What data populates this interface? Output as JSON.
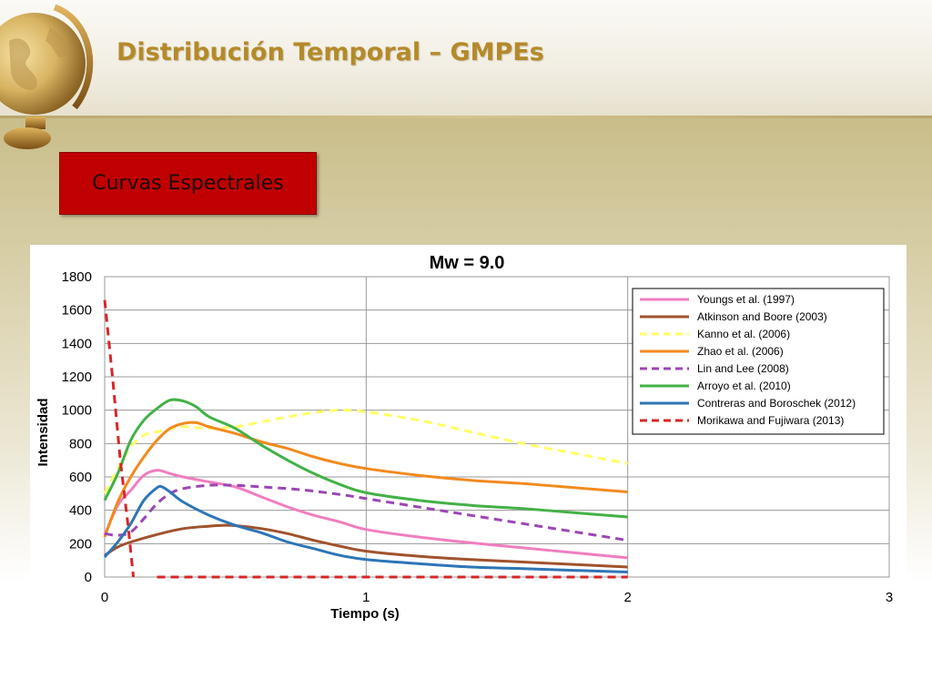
{
  "slide": {
    "title": "Distribución Temporal – GMPEs",
    "box_label": "Curvas Espectrales",
    "colors": {
      "title": "#b48a2a",
      "box": "#c00000"
    }
  },
  "chart_data": {
    "type": "line",
    "title": "Mw = 9.0",
    "xlabel": "Tiempo  (s)",
    "ylabel": "Intensidad",
    "xlim": [
      0,
      3
    ],
    "ylim": [
      0,
      1800
    ],
    "xticks": [
      0,
      1,
      2,
      3
    ],
    "yticks": [
      0,
      200,
      400,
      600,
      800,
      1000,
      1200,
      1400,
      1600,
      1800
    ],
    "grid": true,
    "legend_position": "top-right",
    "series": [
      {
        "name": "Youngs et al. (1997)",
        "color": "#f07ec0",
        "dash": false,
        "points": [
          [
            0,
            250
          ],
          [
            0.05,
            430
          ],
          [
            0.1,
            520
          ],
          [
            0.15,
            610
          ],
          [
            0.2,
            640
          ],
          [
            0.25,
            620
          ],
          [
            0.3,
            600
          ],
          [
            0.4,
            570
          ],
          [
            0.5,
            540
          ],
          [
            0.6,
            480
          ],
          [
            0.7,
            420
          ],
          [
            0.8,
            370
          ],
          [
            0.9,
            330
          ],
          [
            1.0,
            285
          ],
          [
            1.2,
            240
          ],
          [
            1.4,
            205
          ],
          [
            1.6,
            175
          ],
          [
            1.8,
            145
          ],
          [
            2.0,
            115
          ]
        ]
      },
      {
        "name": "Atkinson and Boore (2003)",
        "color": "#a0522d",
        "dash": false,
        "points": [
          [
            0,
            130
          ],
          [
            0.05,
            180
          ],
          [
            0.1,
            210
          ],
          [
            0.2,
            255
          ],
          [
            0.3,
            290
          ],
          [
            0.4,
            305
          ],
          [
            0.45,
            310
          ],
          [
            0.5,
            308
          ],
          [
            0.6,
            290
          ],
          [
            0.7,
            260
          ],
          [
            0.8,
            220
          ],
          [
            0.9,
            185
          ],
          [
            1.0,
            155
          ],
          [
            1.2,
            125
          ],
          [
            1.4,
            105
          ],
          [
            1.6,
            90
          ],
          [
            1.8,
            75
          ],
          [
            2.0,
            60
          ]
        ]
      },
      {
        "name": "Kanno et al. (2006)",
        "color": "#ffff66",
        "dash": true,
        "points": [
          [
            0,
            500
          ],
          [
            0.05,
            650
          ],
          [
            0.1,
            780
          ],
          [
            0.15,
            850
          ],
          [
            0.2,
            870
          ],
          [
            0.3,
            900
          ],
          [
            0.4,
            890
          ],
          [
            0.5,
            900
          ],
          [
            0.6,
            930
          ],
          [
            0.7,
            960
          ],
          [
            0.8,
            985
          ],
          [
            0.9,
            1000
          ],
          [
            1.0,
            990
          ],
          [
            1.2,
            940
          ],
          [
            1.4,
            870
          ],
          [
            1.6,
            800
          ],
          [
            1.8,
            740
          ],
          [
            2.0,
            680
          ]
        ]
      },
      {
        "name": "Zhao et al. (2006)",
        "color": "#f28a1e",
        "dash": false,
        "points": [
          [
            0,
            240
          ],
          [
            0.05,
            450
          ],
          [
            0.1,
            600
          ],
          [
            0.15,
            720
          ],
          [
            0.2,
            820
          ],
          [
            0.25,
            890
          ],
          [
            0.3,
            920
          ],
          [
            0.35,
            925
          ],
          [
            0.4,
            900
          ],
          [
            0.5,
            860
          ],
          [
            0.6,
            810
          ],
          [
            0.7,
            770
          ],
          [
            0.8,
            720
          ],
          [
            0.9,
            680
          ],
          [
            1.0,
            650
          ],
          [
            1.2,
            610
          ],
          [
            1.4,
            580
          ],
          [
            1.6,
            560
          ],
          [
            1.8,
            535
          ],
          [
            2.0,
            510
          ]
        ]
      },
      {
        "name": "Lin and Lee (2008)",
        "color": "#9b46b4",
        "dash": true,
        "points": [
          [
            0,
            260
          ],
          [
            0.05,
            250
          ],
          [
            0.1,
            270
          ],
          [
            0.15,
            350
          ],
          [
            0.2,
            440
          ],
          [
            0.25,
            500
          ],
          [
            0.3,
            530
          ],
          [
            0.4,
            550
          ],
          [
            0.5,
            550
          ],
          [
            0.6,
            540
          ],
          [
            0.7,
            530
          ],
          [
            0.8,
            515
          ],
          [
            0.9,
            495
          ],
          [
            1.0,
            470
          ],
          [
            1.2,
            420
          ],
          [
            1.4,
            370
          ],
          [
            1.6,
            320
          ],
          [
            1.8,
            270
          ],
          [
            2.0,
            220
          ]
        ]
      },
      {
        "name": "Arroyo et al. (2010)",
        "color": "#43b147",
        "dash": false,
        "points": [
          [
            0,
            460
          ],
          [
            0.05,
            620
          ],
          [
            0.1,
            820
          ],
          [
            0.15,
            940
          ],
          [
            0.2,
            1010
          ],
          [
            0.25,
            1060
          ],
          [
            0.3,
            1055
          ],
          [
            0.35,
            1020
          ],
          [
            0.4,
            960
          ],
          [
            0.5,
            890
          ],
          [
            0.6,
            790
          ],
          [
            0.7,
            700
          ],
          [
            0.8,
            620
          ],
          [
            0.9,
            555
          ],
          [
            1.0,
            505
          ],
          [
            1.2,
            460
          ],
          [
            1.4,
            430
          ],
          [
            1.6,
            410
          ],
          [
            1.8,
            385
          ],
          [
            2.0,
            360
          ]
        ]
      },
      {
        "name": "Contreras and Boroschek (2012)",
        "color": "#2e75b6",
        "dash": false,
        "points": [
          [
            0,
            120
          ],
          [
            0.05,
            210
          ],
          [
            0.1,
            320
          ],
          [
            0.15,
            460
          ],
          [
            0.2,
            535
          ],
          [
            0.22,
            540
          ],
          [
            0.25,
            510
          ],
          [
            0.3,
            450
          ],
          [
            0.4,
            370
          ],
          [
            0.5,
            310
          ],
          [
            0.6,
            265
          ],
          [
            0.7,
            210
          ],
          [
            0.8,
            170
          ],
          [
            0.9,
            130
          ],
          [
            1.0,
            105
          ],
          [
            1.2,
            80
          ],
          [
            1.4,
            60
          ],
          [
            1.6,
            50
          ],
          [
            1.8,
            40
          ],
          [
            2.0,
            30
          ]
        ]
      },
      {
        "name": "Morikawa and Fujiwara (2013)",
        "color": "#d62728",
        "dash": true,
        "points": [
          [
            0,
            1660
          ],
          [
            0.03,
            1200
          ],
          [
            0.06,
            700
          ],
          [
            0.09,
            300
          ],
          [
            0.1,
            150
          ],
          [
            0.11,
            0
          ]
        ],
        "points2": [
          [
            0.2,
            0
          ],
          [
            2.0,
            0
          ]
        ]
      }
    ]
  }
}
